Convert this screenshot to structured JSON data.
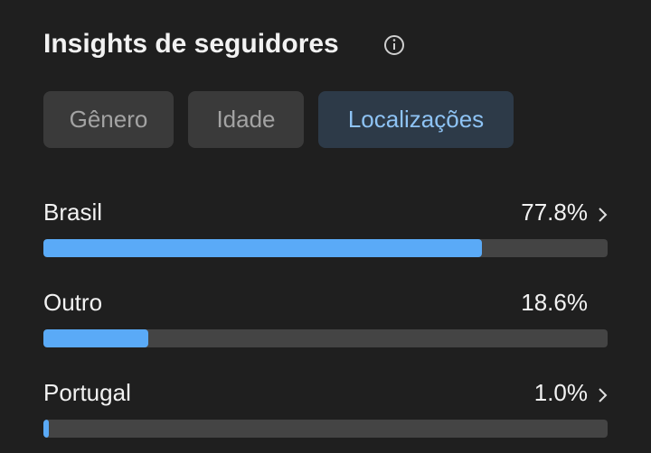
{
  "header": {
    "title": "Insights de seguidores"
  },
  "tabs": [
    "Gênero",
    "Idade",
    "Localizações"
  ],
  "active_tab": 2,
  "locations": {
    "categories": [
      "Brasil",
      "Outro",
      "Portugal"
    ],
    "values": [
      77.8,
      18.6,
      1.0
    ],
    "value_labels": [
      "77.8%",
      "18.6%",
      "1.0%"
    ],
    "has_detail": [
      true,
      false,
      true
    ],
    "xlim": [
      0,
      100
    ],
    "color": "#5aaaf7"
  }
}
